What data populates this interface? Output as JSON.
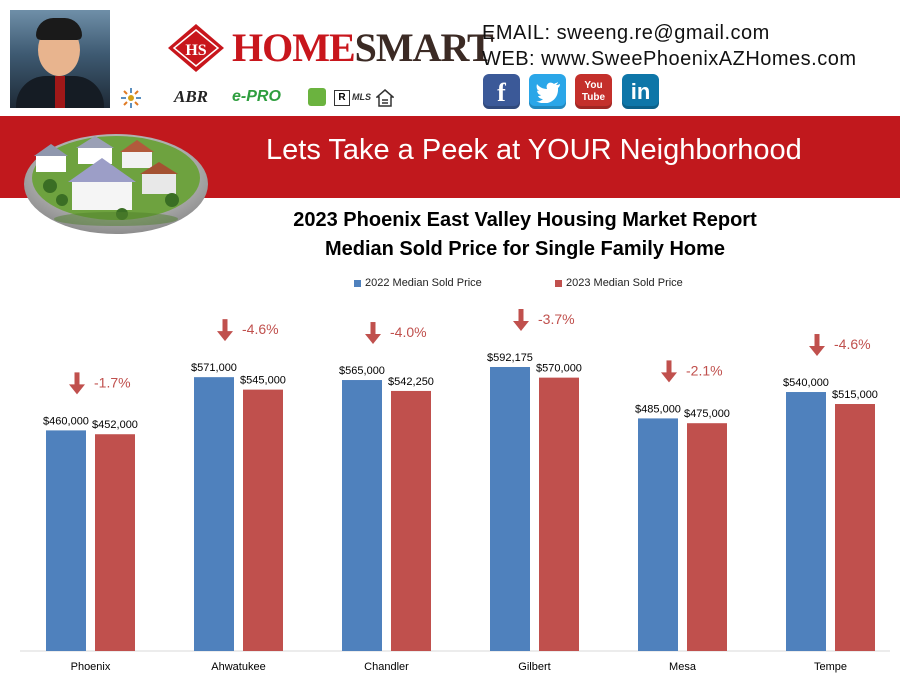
{
  "header": {
    "brand": {
      "primary": "HOME",
      "secondary": "SMART"
    },
    "badges": [
      "ABR",
      "e-PRO",
      "MLS"
    ],
    "email_line": "EMAIL: sweeng.re@gmail.com",
    "web_line": "WEB: www.SweePhoenixAZHomes.com",
    "social_icons": [
      {
        "name": "facebook-icon",
        "glyph": "f",
        "color": "#3b5998"
      },
      {
        "name": "twitter-icon",
        "glyph": "t",
        "color": "#2aa6e8"
      },
      {
        "name": "youtube-icon",
        "glyph": "You Tube",
        "color": "#c4302b"
      },
      {
        "name": "linkedin-icon",
        "glyph": "in",
        "color": "#0e76a8"
      }
    ]
  },
  "banner": {
    "text": "Lets Take a Peek at YOUR Neighborhood",
    "color": "#c1181d"
  },
  "chart_data": {
    "type": "bar",
    "title": "2023 Phoenix East Valley Housing Market Report",
    "subtitle": "Median Sold Price for Single Family Home",
    "categories": [
      "Phoenix",
      "Ahwatukee",
      "Chandler",
      "Gilbert",
      "Mesa",
      "Tempe"
    ],
    "series": [
      {
        "name": "2022 Median Sold Price",
        "color": "#4f81bd",
        "values": [
          460000,
          571000,
          565000,
          592175,
          485000,
          540000
        ],
        "labels": [
          "$460,000",
          "$571,000",
          "$565,000",
          "$592,175",
          "$485,000",
          "$540,000"
        ]
      },
      {
        "name": "2023 Median Sold Price",
        "color": "#c0504d",
        "values": [
          452000,
          545000,
          542250,
          570000,
          475000,
          515000
        ],
        "labels": [
          "$452,000",
          "$545,000",
          "$542,250",
          "$570,000",
          "$475,000",
          "$515,000"
        ]
      }
    ],
    "changes": [
      "-1.7%",
      "-4.6%",
      "-4.0%",
      "-3.7%",
      "-2.1%",
      "-4.6%"
    ],
    "change_color": "#c0504d",
    "legend_position": "top",
    "grid": false
  }
}
